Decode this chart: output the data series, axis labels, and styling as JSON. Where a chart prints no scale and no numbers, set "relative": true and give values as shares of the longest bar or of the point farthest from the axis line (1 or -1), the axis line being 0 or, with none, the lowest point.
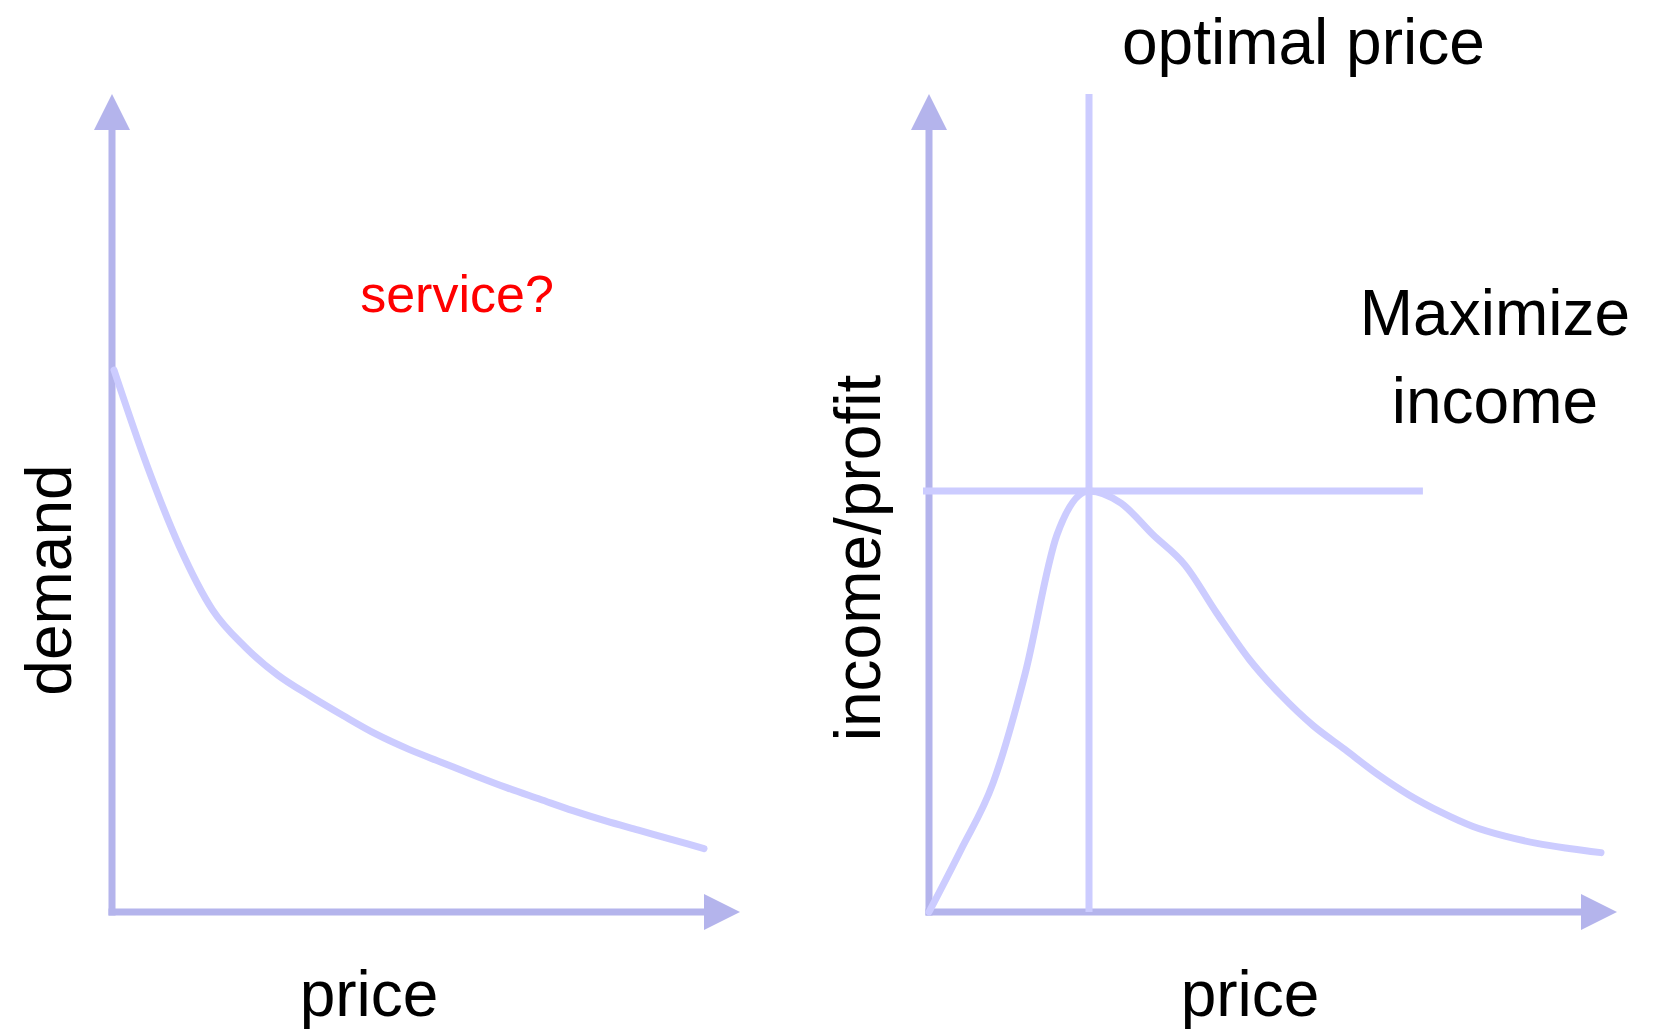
{
  "chart_data": [
    {
      "type": "line",
      "xlabel": "price",
      "ylabel": "demand",
      "annotations": [
        "service?"
      ],
      "relative": true,
      "categories": [
        null,
        null,
        null,
        null,
        null,
        null,
        null,
        null,
        null,
        null,
        null,
        null,
        null,
        null,
        null,
        null,
        null,
        null,
        null
      ],
      "series": [
        {
          "color": "#ccccff",
          "values": [
            1,
            0.825,
            0.674,
            0.558,
            0.489,
            0.437,
            0.398,
            0.362,
            0.328,
            0.3,
            0.276,
            0.252,
            0.229,
            0.208,
            0.187,
            0.168,
            0.151,
            0.134,
            0.117
          ]
        }
      ]
    },
    {
      "type": "line",
      "xlabel": "price",
      "ylabel": "income/profit",
      "annotations": [
        "optimal price"
      ],
      "relative": true,
      "categories": [
        null,
        null,
        null,
        null,
        null,
        null,
        null,
        null,
        null,
        null,
        null,
        null,
        null,
        null,
        null,
        null,
        null,
        null,
        null,
        null,
        null,
        null
      ],
      "series": [
        {
          "color": "#ccccff",
          "values": [
            0,
            0.148,
            0.306,
            0.565,
            0.896,
            1,
            0.971,
            0.896,
            0.824,
            0.709,
            0.601,
            0.515,
            0.443,
            0.386,
            0.328,
            0.278,
            0.237,
            0.203,
            0.18,
            0.163,
            0.151,
            0.141
          ]
        }
      ],
      "ref_lines": [
        {
          "axis": "y",
          "value": 1,
          "label": "Maximize income",
          "color": "#ccccff"
        }
      ]
    }
  ]
}
